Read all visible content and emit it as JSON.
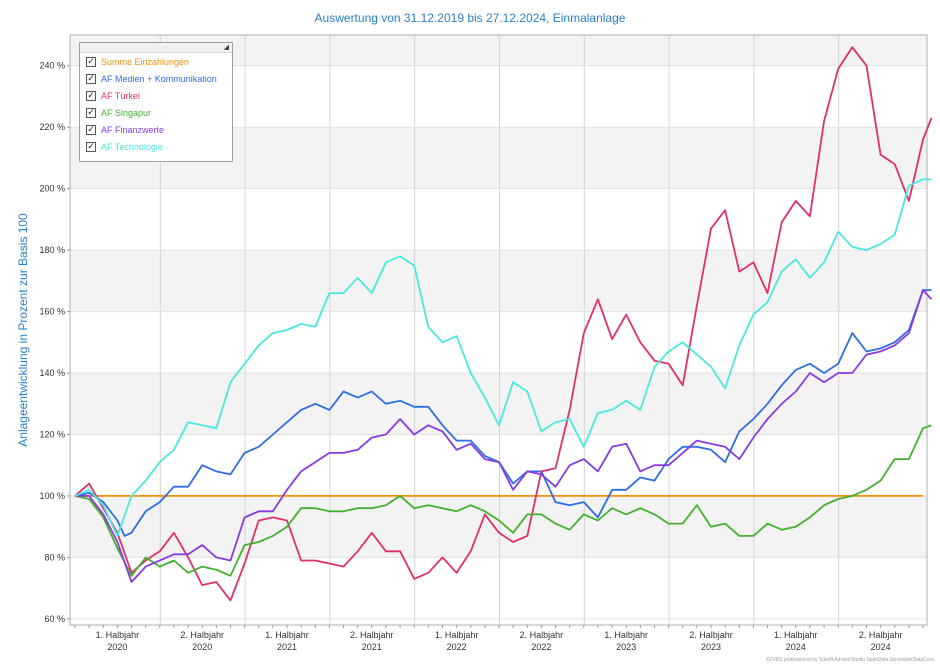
{
  "chart_data": {
    "type": "line",
    "title": "Auswertung von 31.12.2019 bis 27.12.2024, Einmalanlage",
    "ylabel": "Anlageentwicklung  in Prozent zur Basis 100",
    "xlabel": "",
    "ylim": [
      58,
      250
    ],
    "y_ticks": [
      60,
      80,
      100,
      120,
      140,
      160,
      180,
      200,
      220,
      240
    ],
    "y_tick_suffix": " %",
    "x_range": [
      0,
      60
    ],
    "x_ticks": [
      {
        "line1": "1. Halbjahr",
        "line2": "2020"
      },
      {
        "line1": "2. Halbjahr",
        "line2": "2020"
      },
      {
        "line1": "1. Halbjahr",
        "line2": "2021"
      },
      {
        "line1": "2. Halbjahr",
        "line2": "2021"
      },
      {
        "line1": "1. Halbjahr",
        "line2": "2022"
      },
      {
        "line1": "2. Halbjahr",
        "line2": "2022"
      },
      {
        "line1": "1. Halbjahr",
        "line2": "2023"
      },
      {
        "line1": "2. Halbjahr",
        "line2": "2023"
      },
      {
        "line1": "1. Halbjahr",
        "line2": "2024"
      },
      {
        "line1": "2. Halbjahr",
        "line2": "2024"
      }
    ],
    "grid": true,
    "legend_position": "top-left",
    "series": [
      {
        "name": "Summe Einzahlungen",
        "color": "#f0900c",
        "points": [
          [
            0,
            100
          ],
          [
            60,
            100
          ]
        ]
      },
      {
        "name": "AF Medien + Kommunikation",
        "color": "#2f6ee0",
        "points": [
          [
            0,
            100
          ],
          [
            1,
            101
          ],
          [
            2,
            98
          ],
          [
            3,
            92
          ],
          [
            3.5,
            87
          ],
          [
            4,
            88
          ],
          [
            5,
            95
          ],
          [
            6,
            98
          ],
          [
            7,
            103
          ],
          [
            8,
            103
          ],
          [
            9,
            110
          ],
          [
            10,
            108
          ],
          [
            11,
            107
          ],
          [
            12,
            114
          ],
          [
            13,
            116
          ],
          [
            14,
            120
          ],
          [
            15,
            124
          ],
          [
            16,
            128
          ],
          [
            17,
            130
          ],
          [
            18,
            128
          ],
          [
            19,
            134
          ],
          [
            20,
            132
          ],
          [
            21,
            134
          ],
          [
            22,
            130
          ],
          [
            23,
            131
          ],
          [
            24,
            129
          ],
          [
            25,
            129
          ],
          [
            26,
            123
          ],
          [
            27,
            118
          ],
          [
            28,
            118
          ],
          [
            29,
            113
          ],
          [
            30,
            111
          ],
          [
            31,
            104
          ],
          [
            32,
            108
          ],
          [
            33,
            108
          ],
          [
            34,
            98
          ],
          [
            35,
            97
          ],
          [
            36,
            98
          ],
          [
            37,
            93
          ],
          [
            38,
            102
          ],
          [
            39,
            102
          ],
          [
            40,
            106
          ],
          [
            41,
            105
          ],
          [
            42,
            112
          ],
          [
            43,
            116
          ],
          [
            44,
            116
          ],
          [
            45,
            115
          ],
          [
            46,
            111
          ],
          [
            47,
            121
          ],
          [
            48,
            125
          ],
          [
            49,
            130
          ],
          [
            50,
            136
          ],
          [
            51,
            141
          ],
          [
            52,
            143
          ],
          [
            53,
            140
          ],
          [
            54,
            143
          ],
          [
            55,
            153
          ],
          [
            56,
            147
          ],
          [
            57,
            148
          ],
          [
            58,
            150
          ],
          [
            59,
            154
          ],
          [
            60,
            167
          ],
          [
            60.6,
            167
          ]
        ]
      },
      {
        "name": "AF Türkei",
        "color": "#e0306a",
        "points": [
          [
            0,
            100
          ],
          [
            1,
            104
          ],
          [
            2,
            96
          ],
          [
            3,
            88
          ],
          [
            4,
            75
          ],
          [
            5,
            79
          ],
          [
            6,
            82
          ],
          [
            7,
            88
          ],
          [
            8,
            80
          ],
          [
            9,
            71
          ],
          [
            10,
            72
          ],
          [
            11,
            66
          ],
          [
            12,
            78
          ],
          [
            13,
            92
          ],
          [
            14,
            93
          ],
          [
            15,
            92
          ],
          [
            16,
            79
          ],
          [
            17,
            79
          ],
          [
            18,
            78
          ],
          [
            19,
            77
          ],
          [
            20,
            82
          ],
          [
            21,
            88
          ],
          [
            22,
            82
          ],
          [
            23,
            82
          ],
          [
            24,
            73
          ],
          [
            25,
            75
          ],
          [
            26,
            80
          ],
          [
            27,
            75
          ],
          [
            28,
            82
          ],
          [
            29,
            94
          ],
          [
            30,
            88
          ],
          [
            31,
            85
          ],
          [
            32,
            87
          ],
          [
            33,
            108
          ],
          [
            34,
            109
          ],
          [
            35,
            128
          ],
          [
            36,
            153
          ],
          [
            37,
            164
          ],
          [
            38,
            151
          ],
          [
            39,
            159
          ],
          [
            40,
            150
          ],
          [
            41,
            144
          ],
          [
            42,
            143
          ],
          [
            43,
            136
          ],
          [
            44,
            162
          ],
          [
            45,
            187
          ],
          [
            46,
            193
          ],
          [
            47,
            173
          ],
          [
            48,
            176
          ],
          [
            49,
            166
          ],
          [
            50,
            189
          ],
          [
            51,
            196
          ],
          [
            52,
            191
          ],
          [
            53,
            222
          ],
          [
            54,
            239
          ],
          [
            55,
            246
          ],
          [
            56,
            240
          ],
          [
            57,
            211
          ],
          [
            58,
            208
          ],
          [
            59,
            196
          ],
          [
            60,
            216
          ],
          [
            60.6,
            223
          ]
        ]
      },
      {
        "name": "AF Singapur",
        "color": "#44b030",
        "points": [
          [
            0,
            100
          ],
          [
            1,
            99
          ],
          [
            2,
            93
          ],
          [
            3,
            83
          ],
          [
            4,
            74
          ],
          [
            5,
            80
          ],
          [
            6,
            77
          ],
          [
            7,
            79
          ],
          [
            8,
            75
          ],
          [
            9,
            77
          ],
          [
            10,
            76
          ],
          [
            11,
            74
          ],
          [
            12,
            84
          ],
          [
            13,
            85
          ],
          [
            14,
            87
          ],
          [
            15,
            90
          ],
          [
            16,
            96
          ],
          [
            17,
            96
          ],
          [
            18,
            95
          ],
          [
            19,
            95
          ],
          [
            20,
            96
          ],
          [
            21,
            96
          ],
          [
            22,
            97
          ],
          [
            23,
            100
          ],
          [
            24,
            96
          ],
          [
            25,
            97
          ],
          [
            26,
            96
          ],
          [
            27,
            95
          ],
          [
            28,
            97
          ],
          [
            29,
            95
          ],
          [
            30,
            92
          ],
          [
            31,
            88
          ],
          [
            32,
            94
          ],
          [
            33,
            94
          ],
          [
            34,
            91
          ],
          [
            35,
            89
          ],
          [
            36,
            94
          ],
          [
            37,
            92
          ],
          [
            38,
            96
          ],
          [
            39,
            94
          ],
          [
            40,
            96
          ],
          [
            41,
            94
          ],
          [
            42,
            91
          ],
          [
            43,
            91
          ],
          [
            44,
            97
          ],
          [
            45,
            90
          ],
          [
            46,
            91
          ],
          [
            47,
            87
          ],
          [
            48,
            87
          ],
          [
            49,
            91
          ],
          [
            50,
            89
          ],
          [
            51,
            90
          ],
          [
            52,
            93
          ],
          [
            53,
            97
          ],
          [
            54,
            99
          ],
          [
            55,
            100
          ],
          [
            56,
            102
          ],
          [
            57,
            105
          ],
          [
            58,
            112
          ],
          [
            59,
            112
          ],
          [
            60,
            122
          ],
          [
            60.6,
            123
          ]
        ]
      },
      {
        "name": "AF Finanzwerte",
        "color": "#8a3ae0",
        "points": [
          [
            0,
            100
          ],
          [
            1,
            100
          ],
          [
            2,
            94
          ],
          [
            3,
            85
          ],
          [
            4,
            72
          ],
          [
            5,
            77
          ],
          [
            6,
            79
          ],
          [
            7,
            81
          ],
          [
            8,
            81
          ],
          [
            9,
            84
          ],
          [
            10,
            80
          ],
          [
            11,
            79
          ],
          [
            12,
            93
          ],
          [
            13,
            95
          ],
          [
            14,
            95
          ],
          [
            15,
            102
          ],
          [
            16,
            108
          ],
          [
            17,
            111
          ],
          [
            18,
            114
          ],
          [
            19,
            114
          ],
          [
            20,
            115
          ],
          [
            21,
            119
          ],
          [
            22,
            120
          ],
          [
            23,
            125
          ],
          [
            24,
            120
          ],
          [
            25,
            123
          ],
          [
            26,
            121
          ],
          [
            27,
            115
          ],
          [
            28,
            117
          ],
          [
            29,
            112
          ],
          [
            30,
            111
          ],
          [
            31,
            102
          ],
          [
            32,
            108
          ],
          [
            33,
            107
          ],
          [
            34,
            103
          ],
          [
            35,
            110
          ],
          [
            36,
            112
          ],
          [
            37,
            108
          ],
          [
            38,
            116
          ],
          [
            39,
            117
          ],
          [
            40,
            108
          ],
          [
            41,
            110
          ],
          [
            42,
            110
          ],
          [
            43,
            114
          ],
          [
            44,
            118
          ],
          [
            45,
            117
          ],
          [
            46,
            116
          ],
          [
            47,
            112
          ],
          [
            48,
            119
          ],
          [
            49,
            125
          ],
          [
            50,
            130
          ],
          [
            51,
            134
          ],
          [
            52,
            140
          ],
          [
            53,
            137
          ],
          [
            54,
            140
          ],
          [
            55,
            140
          ],
          [
            56,
            146
          ],
          [
            57,
            147
          ],
          [
            58,
            149
          ],
          [
            59,
            153
          ],
          [
            60,
            167
          ],
          [
            60.6,
            164
          ]
        ]
      },
      {
        "name": "AF Technologie",
        "color": "#4ae8e0",
        "points": [
          [
            0,
            100
          ],
          [
            1,
            102
          ],
          [
            2,
            97
          ],
          [
            3,
            87
          ],
          [
            4,
            100
          ],
          [
            5,
            105
          ],
          [
            6,
            111
          ],
          [
            7,
            115
          ],
          [
            8,
            124
          ],
          [
            9,
            123
          ],
          [
            10,
            122
          ],
          [
            11,
            137
          ],
          [
            12,
            143
          ],
          [
            13,
            149
          ],
          [
            14,
            153
          ],
          [
            15,
            154
          ],
          [
            16,
            156
          ],
          [
            17,
            155
          ],
          [
            18,
            166
          ],
          [
            19,
            166
          ],
          [
            20,
            171
          ],
          [
            21,
            166
          ],
          [
            22,
            176
          ],
          [
            23,
            178
          ],
          [
            24,
            175
          ],
          [
            25,
            155
          ],
          [
            26,
            150
          ],
          [
            27,
            152
          ],
          [
            28,
            140
          ],
          [
            29,
            132
          ],
          [
            30,
            123
          ],
          [
            31,
            137
          ],
          [
            32,
            134
          ],
          [
            33,
            121
          ],
          [
            34,
            124
          ],
          [
            35,
            125
          ],
          [
            36,
            116
          ],
          [
            37,
            127
          ],
          [
            38,
            128
          ],
          [
            39,
            131
          ],
          [
            40,
            128
          ],
          [
            41,
            142
          ],
          [
            42,
            147
          ],
          [
            43,
            150
          ],
          [
            44,
            146
          ],
          [
            45,
            142
          ],
          [
            46,
            135
          ],
          [
            47,
            149
          ],
          [
            48,
            159
          ],
          [
            49,
            163
          ],
          [
            50,
            173
          ],
          [
            51,
            177
          ],
          [
            52,
            171
          ],
          [
            53,
            176
          ],
          [
            54,
            186
          ],
          [
            55,
            181
          ],
          [
            56,
            180
          ],
          [
            57,
            182
          ],
          [
            58,
            185
          ],
          [
            59,
            201
          ],
          [
            60,
            203
          ],
          [
            60.6,
            203
          ]
        ]
      }
    ]
  },
  "legend": {
    "checkmark": "✓",
    "grip": "◢"
  },
  "footer": "KFVBS professional by Süsoft AdvisorStudio StatsData DeveloperDataCore"
}
